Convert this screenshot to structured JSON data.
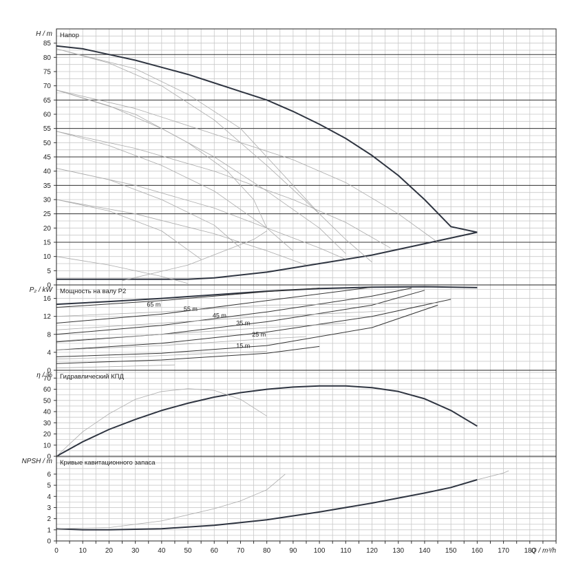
{
  "chart_data": [
    {
      "type": "line",
      "panel": "head",
      "ylabel": "H / m",
      "title": "Напор",
      "xlim": [
        0,
        190
      ],
      "ylim": [
        0,
        90
      ],
      "yticks": [
        0,
        5,
        10,
        15,
        20,
        25,
        30,
        35,
        40,
        45,
        50,
        55,
        60,
        65,
        70,
        75,
        80,
        85
      ],
      "reference_lines": [
        15,
        25,
        35,
        45,
        55,
        65,
        81
      ],
      "series": [
        {
          "emphasis": "bold",
          "points": [
            [
              0,
              84
            ],
            [
              10,
              83
            ],
            [
              20,
              81
            ],
            [
              30,
              79
            ],
            [
              40,
              76.5
            ],
            [
              50,
              74
            ],
            [
              60,
              71
            ],
            [
              70,
              68
            ],
            [
              80,
              65
            ],
            [
              90,
              61
            ],
            [
              100,
              56.5
            ],
            [
              110,
              51.5
            ],
            [
              120,
              45.5
            ],
            [
              130,
              38.5
            ],
            [
              140,
              30
            ],
            [
              150,
              20.5
            ],
            [
              160,
              18.5
            ]
          ]
        },
        {
          "emphasis": "bold",
          "points": [
            [
              0,
              2
            ],
            [
              50,
              2
            ],
            [
              60,
              2.5
            ],
            [
              80,
              4.5
            ],
            [
              100,
              7.5
            ],
            [
              120,
              10.5
            ],
            [
              140,
              14.5
            ],
            [
              160,
              18.5
            ]
          ]
        },
        {
          "emphasis": "thin",
          "points": [
            [
              0,
              83
            ],
            [
              20,
              78
            ],
            [
              40,
              70
            ],
            [
              60,
              58
            ],
            [
              80,
              42
            ],
            [
              100,
              25
            ],
            [
              110,
              16
            ],
            [
              120,
              8
            ]
          ]
        },
        {
          "emphasis": "thin",
          "points": [
            [
              0,
              68.5
            ],
            [
              20,
              63
            ],
            [
              40,
              55
            ],
            [
              60,
              45
            ],
            [
              80,
              33
            ],
            [
              100,
              20
            ],
            [
              110,
              11
            ]
          ]
        },
        {
          "emphasis": "thin",
          "points": [
            [
              0,
              54
            ],
            [
              20,
              49
            ],
            [
              40,
              42
            ],
            [
              60,
              33
            ],
            [
              80,
              20
            ],
            [
              90,
              12
            ]
          ]
        },
        {
          "emphasis": "thin",
          "points": [
            [
              0,
              41
            ],
            [
              20,
              37
            ],
            [
              40,
              30
            ],
            [
              60,
              21
            ],
            [
              70,
              13
            ]
          ]
        },
        {
          "emphasis": "thin",
          "points": [
            [
              0,
              30
            ],
            [
              20,
              26
            ],
            [
              40,
              19
            ],
            [
              55,
              9
            ]
          ]
        },
        {
          "emphasis": "thin",
          "points": [
            [
              0,
              10
            ],
            [
              20,
              7
            ],
            [
              40,
              3
            ],
            [
              50,
              0.5
            ]
          ]
        },
        {
          "emphasis": "thin",
          "points": [
            [
              0,
              68.5
            ],
            [
              30,
              62
            ],
            [
              60,
              53
            ],
            [
              90,
              44
            ],
            [
              110,
              36
            ],
            [
              130,
              25
            ],
            [
              145,
              15
            ]
          ]
        },
        {
          "emphasis": "thin",
          "points": [
            [
              0,
              54
            ],
            [
              30,
              48
            ],
            [
              60,
              40
            ],
            [
              90,
              30
            ],
            [
              110,
              22
            ],
            [
              127,
              13
            ]
          ]
        },
        {
          "emphasis": "thin",
          "points": [
            [
              0,
              41
            ],
            [
              30,
              35
            ],
            [
              60,
              27
            ],
            [
              80,
              20
            ],
            [
              100,
              13
            ],
            [
              110,
              9
            ]
          ]
        },
        {
          "emphasis": "thin",
          "points": [
            [
              0,
              30
            ],
            [
              30,
              25
            ],
            [
              60,
              18
            ],
            [
              80,
              12
            ],
            [
              95,
              7
            ]
          ]
        },
        {
          "emphasis": "thin",
          "points": [
            [
              0,
              83
            ],
            [
              30,
              76
            ],
            [
              50,
              67
            ],
            [
              70,
              55
            ],
            [
              80,
              45
            ],
            [
              90,
              35
            ],
            [
              100,
              25
            ]
          ]
        },
        {
          "emphasis": "thin",
          "points": [
            [
              0,
              68.5
            ],
            [
              30,
              60
            ],
            [
              50,
              50
            ],
            [
              65,
              40
            ],
            [
              75,
              30
            ],
            [
              80,
              20
            ]
          ]
        },
        {
          "emphasis": "thin",
          "points": [
            [
              25,
              1.5
            ],
            [
              50,
              7
            ],
            [
              75,
              16
            ],
            [
              80,
              19
            ]
          ]
        }
      ]
    },
    {
      "type": "line",
      "panel": "power",
      "ylabel": "P₂ / kW",
      "title": "Мощность на валу P2",
      "xlim": [
        0,
        190
      ],
      "ylim": [
        0,
        19
      ],
      "yticks": [
        0,
        4,
        8,
        12,
        16
      ],
      "annotations": [
        {
          "text": "65 m",
          "x": 37,
          "y": 14.2
        },
        {
          "text": "55 m",
          "x": 51,
          "y": 13.2
        },
        {
          "text": "45 m",
          "x": 62,
          "y": 11.7
        },
        {
          "text": "35 m",
          "x": 71,
          "y": 10.0
        },
        {
          "text": "25 m",
          "x": 77,
          "y": 7.5
        },
        {
          "text": "15 m",
          "x": 71,
          "y": 5.0
        }
      ],
      "series": [
        {
          "emphasis": "bold",
          "points": [
            [
              0,
              14.7
            ],
            [
              20,
              15.3
            ],
            [
              40,
              16
            ],
            [
              60,
              16.8
            ],
            [
              80,
              17.6
            ],
            [
              100,
              18.2
            ],
            [
              120,
              18.5
            ],
            [
              140,
              18.6
            ],
            [
              160,
              18.4
            ]
          ]
        },
        {
          "emphasis": "normal",
          "points": [
            [
              0,
              14
            ],
            [
              40,
              15.5
            ],
            [
              80,
              17.5
            ],
            [
              100,
              18.3
            ]
          ]
        },
        {
          "emphasis": "normal",
          "points": [
            [
              0,
              10.5
            ],
            [
              40,
              12.5
            ],
            [
              80,
              15.5
            ],
            [
              120,
              18.5
            ]
          ]
        },
        {
          "emphasis": "normal",
          "points": [
            [
              0,
              8
            ],
            [
              40,
              10
            ],
            [
              80,
              13
            ],
            [
              120,
              16.5
            ],
            [
              135,
              18.3
            ]
          ]
        },
        {
          "emphasis": "normal",
          "points": [
            [
              0,
              6.3
            ],
            [
              40,
              8
            ],
            [
              80,
              10.8
            ],
            [
              120,
              14.5
            ],
            [
              140,
              17.8
            ]
          ]
        },
        {
          "emphasis": "normal",
          "points": [
            [
              0,
              4.5
            ],
            [
              40,
              6
            ],
            [
              80,
              8.5
            ],
            [
              120,
              12
            ],
            [
              150,
              15.8
            ]
          ]
        },
        {
          "emphasis": "normal",
          "points": [
            [
              0,
              3
            ],
            [
              40,
              3.8
            ],
            [
              80,
              5.5
            ],
            [
              120,
              9.5
            ],
            [
              145,
              14.5
            ]
          ]
        },
        {
          "emphasis": "normal",
          "points": [
            [
              0,
              1.5
            ],
            [
              40,
              2.3
            ],
            [
              80,
              3.8
            ],
            [
              100,
              5.3
            ]
          ]
        },
        {
          "emphasis": "thin",
          "points": [
            [
              0,
              12
            ],
            [
              40,
              13
            ],
            [
              80,
              14.5
            ],
            [
              145,
              15
            ]
          ]
        },
        {
          "emphasis": "thin",
          "points": [
            [
              0,
              9
            ],
            [
              40,
              10.5
            ],
            [
              80,
              12
            ],
            [
              125,
              13.2
            ]
          ]
        },
        {
          "emphasis": "thin",
          "points": [
            [
              0,
              6.5
            ],
            [
              40,
              8
            ],
            [
              80,
              9.5
            ],
            [
              110,
              10.5
            ]
          ]
        },
        {
          "emphasis": "thin",
          "points": [
            [
              0,
              4.5
            ],
            [
              40,
              5.5
            ],
            [
              80,
              7
            ],
            [
              95,
              7.5
            ]
          ]
        },
        {
          "emphasis": "thin",
          "points": [
            [
              0,
              2.5
            ],
            [
              30,
              3
            ],
            [
              60,
              3.8
            ],
            [
              80,
              4.2
            ]
          ]
        },
        {
          "emphasis": "thin",
          "points": [
            [
              0,
              0.5
            ],
            [
              20,
              0.8
            ],
            [
              45,
              1.2
            ]
          ]
        }
      ]
    },
    {
      "type": "line",
      "panel": "efficiency",
      "ylabel": "η / %",
      "title": "Гидравлический КПД",
      "xlim": [
        0,
        190
      ],
      "ylim": [
        0,
        77
      ],
      "yticks": [
        0,
        10,
        20,
        30,
        40,
        50,
        60,
        70
      ],
      "series": [
        {
          "emphasis": "bold",
          "points": [
            [
              0,
              0
            ],
            [
              10,
              13
            ],
            [
              20,
              24
            ],
            [
              30,
              33
            ],
            [
              40,
              41
            ],
            [
              50,
              47.5
            ],
            [
              60,
              53
            ],
            [
              70,
              57
            ],
            [
              80,
              60
            ],
            [
              90,
              62
            ],
            [
              100,
              63
            ],
            [
              110,
              63
            ],
            [
              120,
              61.5
            ],
            [
              130,
              58
            ],
            [
              140,
              51.5
            ],
            [
              150,
              41
            ],
            [
              160,
              27
            ]
          ]
        },
        {
          "emphasis": "thin",
          "points": [
            [
              0,
              0
            ],
            [
              10,
              22
            ],
            [
              20,
              38
            ],
            [
              30,
              51
            ],
            [
              40,
              58
            ],
            [
              50,
              60.5
            ],
            [
              60,
              59
            ],
            [
              70,
              51
            ],
            [
              80,
              36
            ]
          ]
        }
      ]
    },
    {
      "type": "line",
      "panel": "npsh",
      "ylabel": "NPSH / m",
      "title": "Кривые кавитационного запаса",
      "xlim": [
        0,
        190
      ],
      "ylim": [
        0,
        7.6
      ],
      "yticks": [
        0,
        1,
        2,
        3,
        4,
        5,
        6
      ],
      "series": [
        {
          "emphasis": "bold",
          "points": [
            [
              0,
              1.1
            ],
            [
              10,
              1.0
            ],
            [
              20,
              1.0
            ],
            [
              40,
              1.1
            ],
            [
              60,
              1.4
            ],
            [
              80,
              1.9
            ],
            [
              100,
              2.6
            ],
            [
              120,
              3.4
            ],
            [
              140,
              4.3
            ],
            [
              150,
              4.8
            ],
            [
              160,
              5.5
            ]
          ]
        },
        {
          "emphasis": "thin",
          "points": [
            [
              0,
              1.1
            ],
            [
              20,
              1.2
            ],
            [
              40,
              1.8
            ],
            [
              60,
              2.9
            ],
            [
              70,
              3.6
            ],
            [
              80,
              4.6
            ],
            [
              85,
              5.6
            ],
            [
              87,
              6
            ]
          ]
        },
        {
          "emphasis": "thin",
          "points": [
            [
              160,
              5.5
            ],
            [
              170,
              6.1
            ],
            [
              172,
              6.3
            ]
          ]
        }
      ]
    }
  ],
  "x_axis": {
    "label": "Q / m³/h",
    "ticks": [
      0,
      10,
      20,
      30,
      40,
      50,
      60,
      70,
      80,
      90,
      100,
      110,
      120,
      130,
      140,
      150,
      160,
      170,
      180
    ]
  }
}
